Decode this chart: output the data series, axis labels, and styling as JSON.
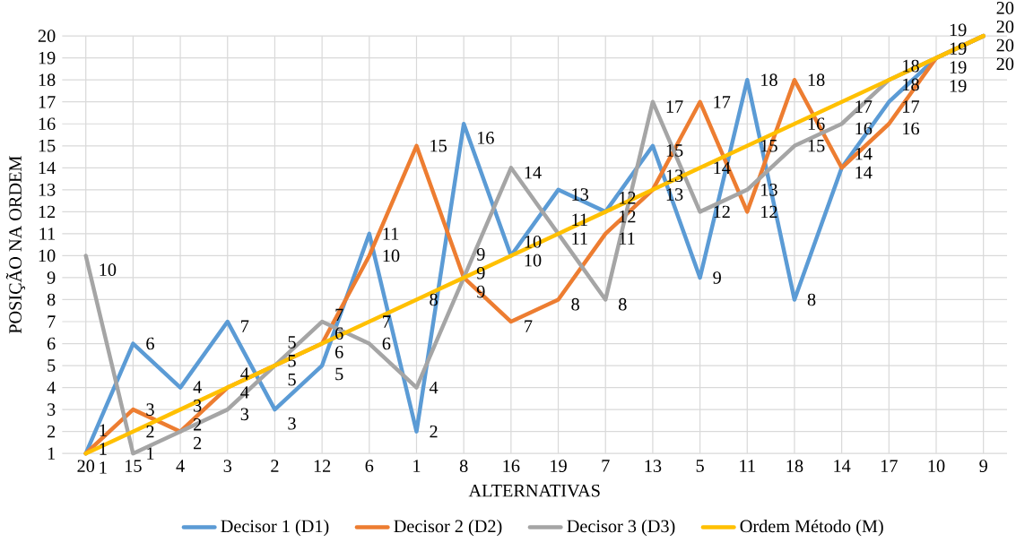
{
  "chart_data": {
    "type": "line",
    "xlabel": "ALTERNATIVAS",
    "ylabel": "POSIÇÃO NA ORDEM",
    "categories": [
      "20",
      "15",
      "4",
      "3",
      "2",
      "12",
      "6",
      "1",
      "8",
      "16",
      "19",
      "7",
      "13",
      "5",
      "11",
      "18",
      "14",
      "17",
      "10",
      "9"
    ],
    "series": [
      {
        "name": "Decisor 1 (D1)",
        "color": "#5b9bd5",
        "values": [
          1,
          6,
          4,
          7,
          3,
          5,
          11,
          2,
          16,
          10,
          13,
          12,
          15,
          9,
          18,
          8,
          14,
          17,
          19,
          20
        ]
      },
      {
        "name": "Decisor 2 (D2)",
        "color": "#ed7d31",
        "values": [
          1,
          3,
          2,
          4,
          5,
          6,
          10,
          15,
          9,
          7,
          8,
          11,
          13,
          17,
          12,
          18,
          14,
          16,
          19,
          20
        ]
      },
      {
        "name": "Decisor 3 (D3)",
        "color": "#a5a5a5",
        "values": [
          10,
          1,
          2,
          3,
          5,
          7,
          6,
          4,
          9,
          14,
          11,
          8,
          17,
          12,
          13,
          15,
          16,
          18,
          19,
          20
        ]
      },
      {
        "name": "Ordem Método (M)",
        "color": "#ffc000",
        "values": [
          1,
          2,
          3,
          4,
          5,
          6,
          7,
          8,
          9,
          10,
          11,
          12,
          13,
          14,
          15,
          16,
          17,
          18,
          19,
          20
        ]
      }
    ],
    "ylim": [
      1,
      20
    ],
    "yticks": [
      1,
      2,
      3,
      4,
      5,
      6,
      7,
      8,
      9,
      10,
      11,
      12,
      13,
      14,
      15,
      16,
      17,
      18,
      19,
      20
    ],
    "grid": true,
    "legend": "bottom",
    "marker": "none",
    "line_style": "solid",
    "data_labels": true
  }
}
